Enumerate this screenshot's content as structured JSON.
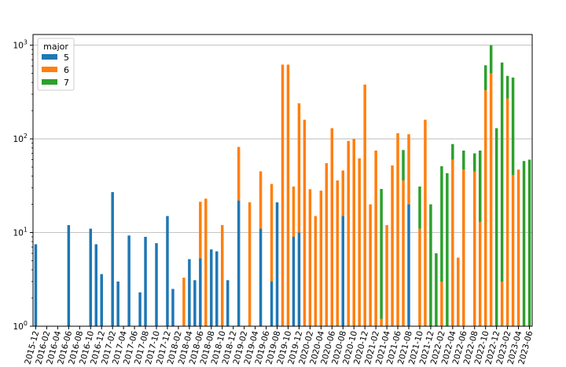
{
  "chart_data": {
    "type": "bar",
    "stacked": true,
    "yscale": "log",
    "ylim": [
      1,
      1300
    ],
    "grid": "y",
    "legend": {
      "title": "major",
      "position": "top-left",
      "entries": [
        "5",
        "6",
        "7"
      ]
    },
    "colors": {
      "5": "#1f77b4",
      "6": "#ff7f0e",
      "7": "#2ca02c"
    },
    "categories": [
      "2015-12",
      "2016-01",
      "2016-02",
      "2016-03",
      "2016-04",
      "2016-05",
      "2016-06",
      "2016-07",
      "2016-08",
      "2016-09",
      "2016-10",
      "2016-11",
      "2016-12",
      "2017-01",
      "2017-02",
      "2017-03",
      "2017-04",
      "2017-05",
      "2017-06",
      "2017-07",
      "2017-08",
      "2017-09",
      "2017-10",
      "2017-11",
      "2017-12",
      "2018-01",
      "2018-02",
      "2018-03",
      "2018-04",
      "2018-05",
      "2018-06",
      "2018-07",
      "2018-08",
      "2018-09",
      "2018-10",
      "2018-11",
      "2018-12",
      "2019-01",
      "2019-02",
      "2019-03",
      "2019-04",
      "2019-05",
      "2019-06",
      "2019-07",
      "2019-08",
      "2019-09",
      "2019-10",
      "2019-11",
      "2019-12",
      "2020-01",
      "2020-02",
      "2020-03",
      "2020-04",
      "2020-05",
      "2020-06",
      "2020-07",
      "2020-08",
      "2020-09",
      "2020-10",
      "2020-11",
      "2020-12",
      "2021-01",
      "2021-02",
      "2021-03",
      "2021-04",
      "2021-05",
      "2021-06",
      "2021-07",
      "2021-08",
      "2021-09",
      "2021-10",
      "2021-11",
      "2021-12",
      "2022-01",
      "2022-02",
      "2022-03",
      "2022-04",
      "2022-05",
      "2022-06",
      "2022-07",
      "2022-08",
      "2022-09",
      "2022-10",
      "2022-11",
      "2022-12",
      "2023-01",
      "2023-02",
      "2023-03",
      "2023-04",
      "2023-05",
      "2023-06"
    ],
    "xtick_labels": [
      "2015-12",
      "2016-02",
      "2016-04",
      "2016-06",
      "2016-08",
      "2016-10",
      "2016-12",
      "2017-02",
      "2017-04",
      "2017-06",
      "2017-08",
      "2017-10",
      "2017-12",
      "2018-02",
      "2018-04",
      "2018-06",
      "2018-08",
      "2018-10",
      "2018-12",
      "2019-02",
      "2019-04",
      "2019-06",
      "2019-08",
      "2019-10",
      "2019-12",
      "2020-02",
      "2020-04",
      "2020-06",
      "2020-08",
      "2020-10",
      "2020-12",
      "2021-02",
      "2021-04",
      "2021-06",
      "2021-08",
      "2021-10",
      "2021-12",
      "2022-02",
      "2022-04",
      "2022-06",
      "2022-08",
      "2022-10",
      "2022-12",
      "2023-02",
      "2023-04",
      "2023-06"
    ],
    "ytick_labels": [
      "10^0",
      "10^1",
      "10^2",
      "10^3"
    ],
    "series": [
      {
        "name": "5",
        "values": [
          7.5,
          0,
          0,
          0,
          0,
          0,
          12,
          0,
          0,
          0,
          11,
          7.5,
          3.6,
          0,
          27,
          3,
          0,
          9.3,
          0,
          2.3,
          9,
          0,
          7.7,
          0,
          15,
          2.5,
          0,
          0,
          5.2,
          3.1,
          5.3,
          0,
          6.6,
          6.3,
          0,
          3.1,
          0,
          22,
          0,
          0,
          0,
          11,
          0,
          3,
          21,
          0,
          0,
          9,
          10,
          0,
          0,
          0,
          0,
          0,
          0,
          0,
          15,
          0,
          0,
          0,
          0,
          0,
          0,
          0,
          0,
          0,
          0,
          0,
          20,
          0,
          0,
          0,
          0,
          0,
          0,
          0,
          0,
          0,
          0,
          0,
          0,
          0,
          0,
          0,
          0,
          0,
          0,
          0,
          0,
          0,
          0
        ]
      },
      {
        "name": "6",
        "values": [
          0,
          0,
          0,
          0,
          0,
          0,
          0,
          0,
          0,
          0,
          0,
          0,
          0,
          0,
          0,
          0,
          0,
          0,
          0,
          0,
          0,
          0,
          0,
          0,
          0,
          0,
          0,
          3.3,
          0,
          0,
          16,
          23,
          0,
          0,
          12,
          0,
          0,
          60,
          0,
          21,
          0,
          34,
          0,
          30,
          0,
          620,
          620,
          22,
          230,
          160,
          29,
          15,
          28,
          55,
          130,
          36,
          31,
          95,
          100,
          62,
          380,
          20,
          75,
          1.2,
          12,
          52,
          115,
          36,
          92,
          0,
          11,
          160,
          0,
          0,
          3,
          0,
          60,
          5.4,
          47,
          0,
          45,
          13,
          330,
          500,
          0,
          3,
          270,
          41,
          47,
          0,
          0
        ]
      },
      {
        "name": "7",
        "values": [
          0,
          0,
          0,
          0,
          0,
          0,
          0,
          0,
          0,
          0,
          0,
          0,
          0,
          0,
          0,
          0,
          0,
          0,
          0,
          0,
          0,
          0,
          0,
          0,
          0,
          0,
          0,
          0,
          0,
          0,
          0,
          0,
          0,
          0,
          0,
          0,
          0,
          0,
          0,
          0,
          0,
          0,
          0,
          0,
          0,
          0,
          0,
          0,
          0,
          0,
          0,
          0,
          0,
          0,
          0,
          0,
          0,
          0,
          0,
          0,
          0,
          0,
          0,
          28,
          0,
          0,
          0,
          40,
          0,
          0,
          20,
          0,
          20,
          6,
          48,
          43,
          28,
          0,
          28,
          0,
          25,
          62,
          280,
          500,
          130,
          650,
          200,
          410,
          0,
          58,
          60
        ]
      }
    ]
  }
}
